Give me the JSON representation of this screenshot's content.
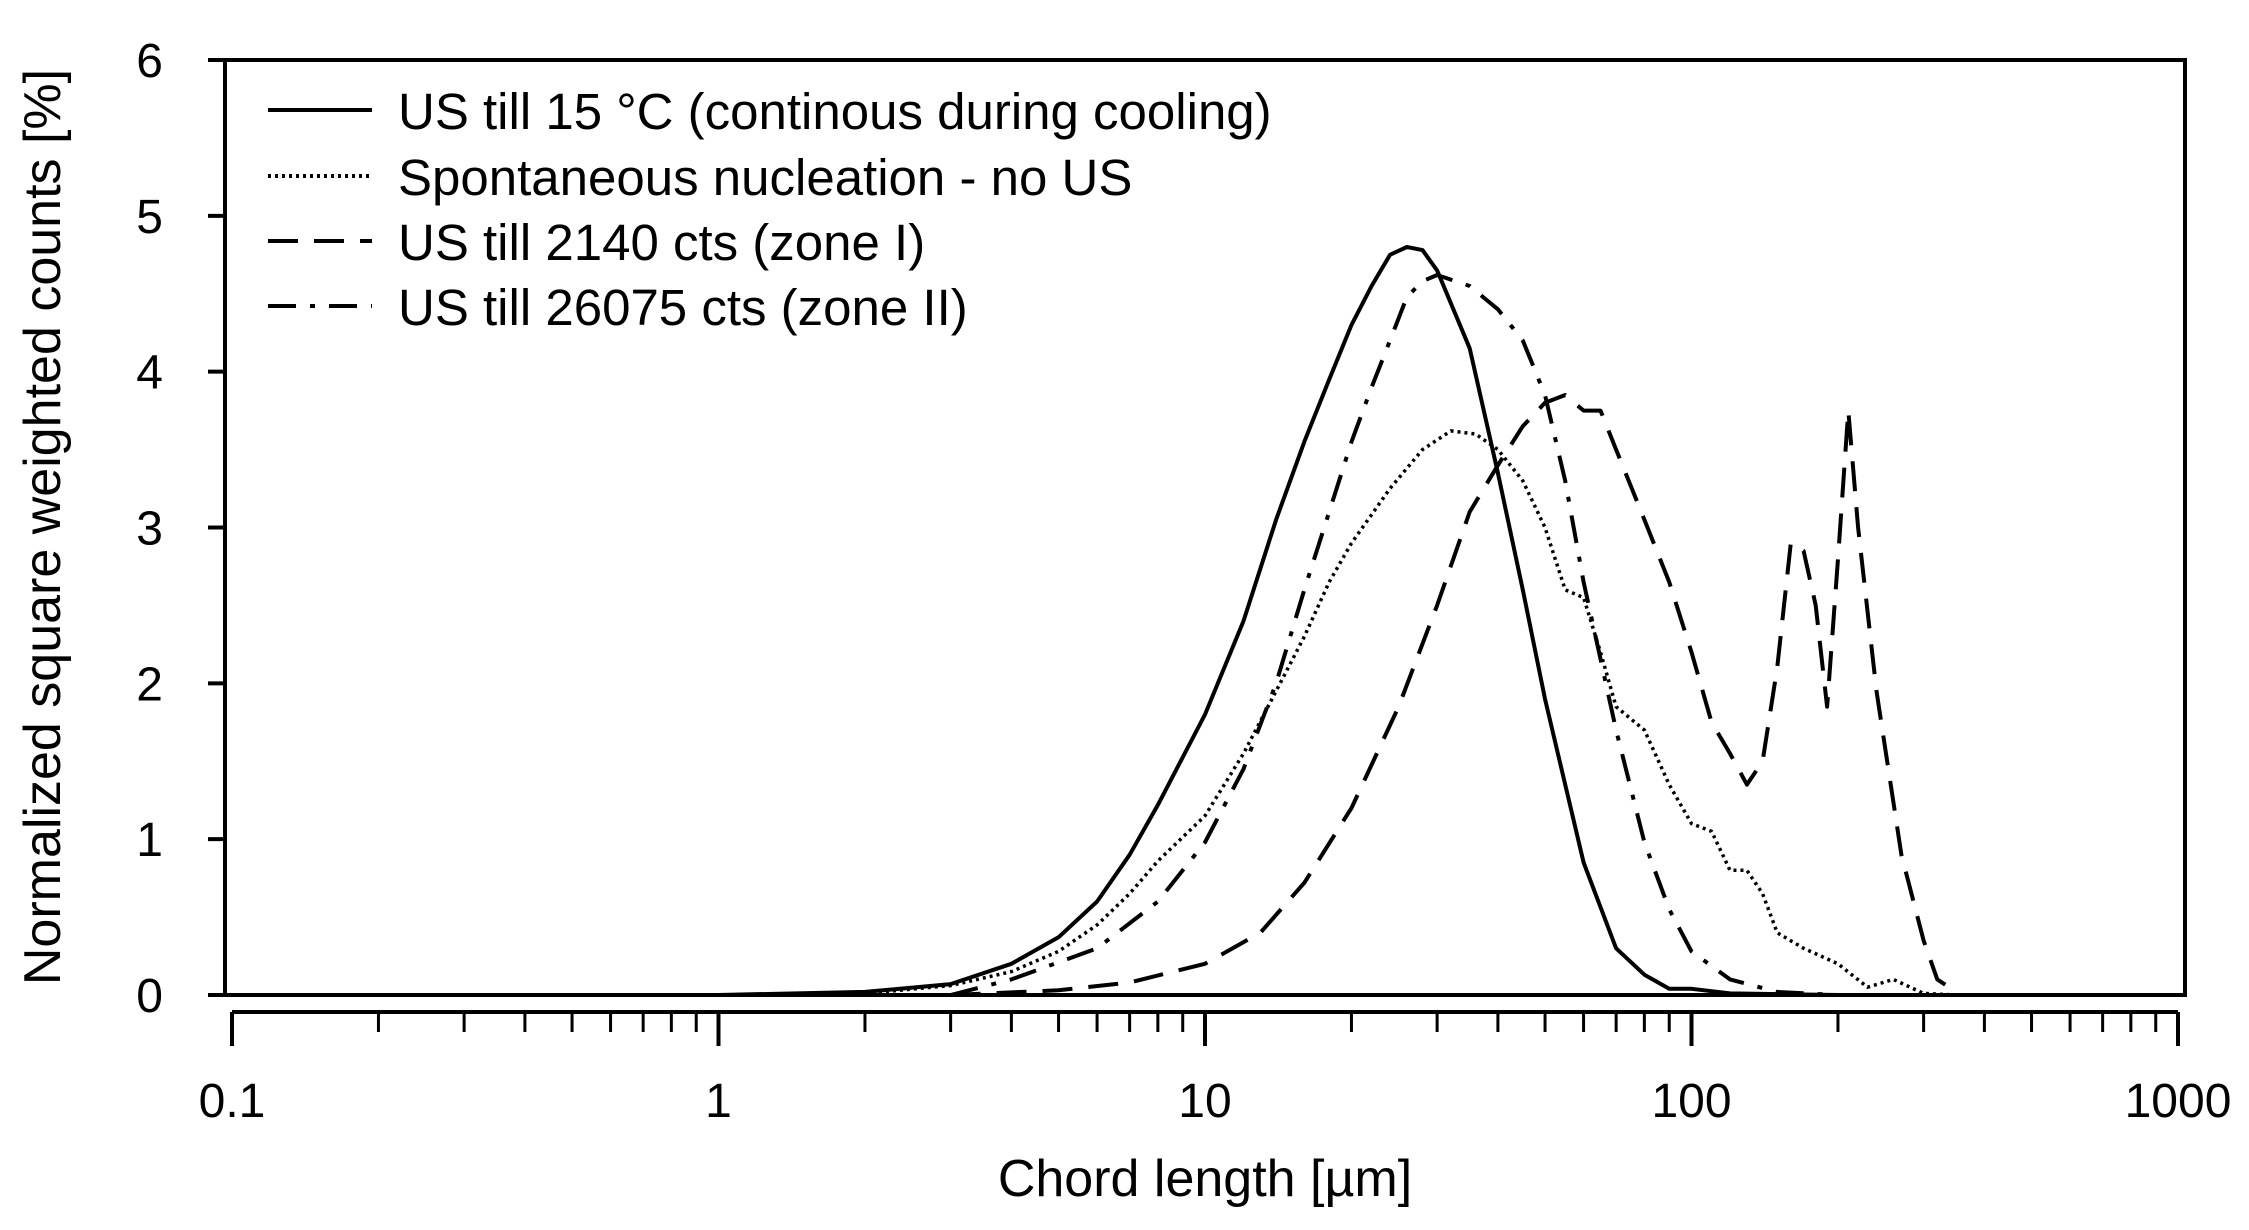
{
  "chart_data": {
    "type": "line",
    "title": "",
    "xlabel": "Chord length [µm]",
    "ylabel": "Normalized square weighted counts [%]",
    "xscale": "log",
    "xlim": [
      0.1,
      1000
    ],
    "ylim": [
      0,
      6
    ],
    "x_ticks": [
      0.1,
      1,
      10,
      100,
      1000
    ],
    "x_tick_labels": [
      "0.1",
      "1",
      "10",
      "100",
      "1000"
    ],
    "y_ticks": [
      0,
      1,
      2,
      3,
      4,
      5,
      6
    ],
    "y_tick_labels": [
      "0",
      "1",
      "2",
      "3",
      "4",
      "5",
      "6"
    ],
    "legend_position": "top-left",
    "colors": {
      "line": "#000000",
      "background": "#ffffff"
    },
    "series": [
      {
        "name": "US till 15 °C (continous during cooling)",
        "style": "solid",
        "points": [
          [
            1.0,
            0.0
          ],
          [
            2.0,
            0.02
          ],
          [
            3.0,
            0.07
          ],
          [
            4.0,
            0.2
          ],
          [
            5.0,
            0.37
          ],
          [
            6.0,
            0.6
          ],
          [
            7.0,
            0.9
          ],
          [
            8.0,
            1.22
          ],
          [
            10.0,
            1.8
          ],
          [
            12.0,
            2.4
          ],
          [
            14.0,
            3.05
          ],
          [
            16.0,
            3.55
          ],
          [
            18.0,
            3.95
          ],
          [
            20.0,
            4.3
          ],
          [
            22.0,
            4.55
          ],
          [
            24.0,
            4.75
          ],
          [
            26.0,
            4.8
          ],
          [
            28.0,
            4.78
          ],
          [
            30.0,
            4.65
          ],
          [
            35.0,
            4.15
          ],
          [
            40.0,
            3.35
          ],
          [
            45.0,
            2.6
          ],
          [
            50.0,
            1.9
          ],
          [
            55.0,
            1.35
          ],
          [
            60.0,
            0.85
          ],
          [
            70.0,
            0.3
          ],
          [
            80.0,
            0.13
          ],
          [
            90.0,
            0.04
          ],
          [
            100.0,
            0.04
          ],
          [
            120.0,
            0.01
          ],
          [
            200.0,
            0.0
          ],
          [
            1000.0,
            0.0
          ]
        ]
      },
      {
        "name": "Spontaneous nucleation - no US",
        "style": "dotted",
        "points": [
          [
            2.0,
            0.01
          ],
          [
            3.0,
            0.06
          ],
          [
            4.0,
            0.15
          ],
          [
            5.0,
            0.28
          ],
          [
            6.0,
            0.45
          ],
          [
            7.0,
            0.65
          ],
          [
            8.0,
            0.86
          ],
          [
            10.0,
            1.15
          ],
          [
            12.0,
            1.55
          ],
          [
            14.0,
            1.95
          ],
          [
            16.0,
            2.3
          ],
          [
            18.0,
            2.65
          ],
          [
            20.0,
            2.9
          ],
          [
            24.0,
            3.25
          ],
          [
            28.0,
            3.5
          ],
          [
            32.0,
            3.62
          ],
          [
            36.0,
            3.6
          ],
          [
            40.0,
            3.5
          ],
          [
            45.0,
            3.3
          ],
          [
            50.0,
            3.0
          ],
          [
            55.0,
            2.6
          ],
          [
            60.0,
            2.55
          ],
          [
            65.0,
            2.2
          ],
          [
            70.0,
            1.85
          ],
          [
            80.0,
            1.7
          ],
          [
            90.0,
            1.35
          ],
          [
            100.0,
            1.1
          ],
          [
            110.0,
            1.05
          ],
          [
            120.0,
            0.8
          ],
          [
            130.0,
            0.8
          ],
          [
            140.0,
            0.65
          ],
          [
            150.0,
            0.4
          ],
          [
            170.0,
            0.3
          ],
          [
            200.0,
            0.2
          ],
          [
            230.0,
            0.05
          ],
          [
            260.0,
            0.1
          ],
          [
            300.0,
            0.01
          ],
          [
            350.0,
            0.0
          ]
        ]
      },
      {
        "name": "US till 2140 cts (zone I)",
        "style": "dashed",
        "points": [
          [
            3.0,
            0.0
          ],
          [
            5.0,
            0.03
          ],
          [
            7.0,
            0.08
          ],
          [
            10.0,
            0.2
          ],
          [
            13.0,
            0.4
          ],
          [
            16.0,
            0.72
          ],
          [
            20.0,
            1.2
          ],
          [
            25.0,
            1.85
          ],
          [
            30.0,
            2.5
          ],
          [
            35.0,
            3.1
          ],
          [
            40.0,
            3.4
          ],
          [
            45.0,
            3.65
          ],
          [
            50.0,
            3.8
          ],
          [
            55.0,
            3.85
          ],
          [
            60.0,
            3.75
          ],
          [
            65.0,
            3.75
          ],
          [
            70.0,
            3.5
          ],
          [
            80.0,
            3.05
          ],
          [
            90.0,
            2.65
          ],
          [
            100.0,
            2.2
          ],
          [
            110.0,
            1.75
          ],
          [
            120.0,
            1.55
          ],
          [
            130.0,
            1.35
          ],
          [
            140.0,
            1.5
          ],
          [
            150.0,
            2.1
          ],
          [
            160.0,
            2.9
          ],
          [
            170.0,
            2.85
          ],
          [
            180.0,
            2.5
          ],
          [
            190.0,
            1.85
          ],
          [
            200.0,
            2.8
          ],
          [
            210.0,
            3.75
          ],
          [
            220.0,
            3.0
          ],
          [
            240.0,
            1.95
          ],
          [
            270.0,
            0.9
          ],
          [
            300.0,
            0.35
          ],
          [
            320.0,
            0.1
          ],
          [
            350.0,
            0.02
          ]
        ]
      },
      {
        "name": "US till 26075 cts (zone II)",
        "style": "dashdot",
        "points": [
          [
            3.0,
            0.0
          ],
          [
            4.0,
            0.1
          ],
          [
            6.0,
            0.3
          ],
          [
            8.0,
            0.6
          ],
          [
            10.0,
            0.98
          ],
          [
            12.0,
            1.45
          ],
          [
            14.0,
            2.0
          ],
          [
            16.0,
            2.6
          ],
          [
            18.0,
            3.1
          ],
          [
            20.0,
            3.55
          ],
          [
            22.0,
            3.9
          ],
          [
            24.0,
            4.2
          ],
          [
            26.0,
            4.48
          ],
          [
            28.0,
            4.58
          ],
          [
            30.0,
            4.62
          ],
          [
            35.0,
            4.55
          ],
          [
            40.0,
            4.4
          ],
          [
            45.0,
            4.2
          ],
          [
            50.0,
            3.85
          ],
          [
            55.0,
            3.3
          ],
          [
            60.0,
            2.65
          ],
          [
            70.0,
            1.7
          ],
          [
            80.0,
            0.98
          ],
          [
            90.0,
            0.55
          ],
          [
            100.0,
            0.28
          ],
          [
            120.0,
            0.1
          ],
          [
            150.0,
            0.02
          ],
          [
            200.0,
            0.0
          ]
        ]
      }
    ]
  }
}
